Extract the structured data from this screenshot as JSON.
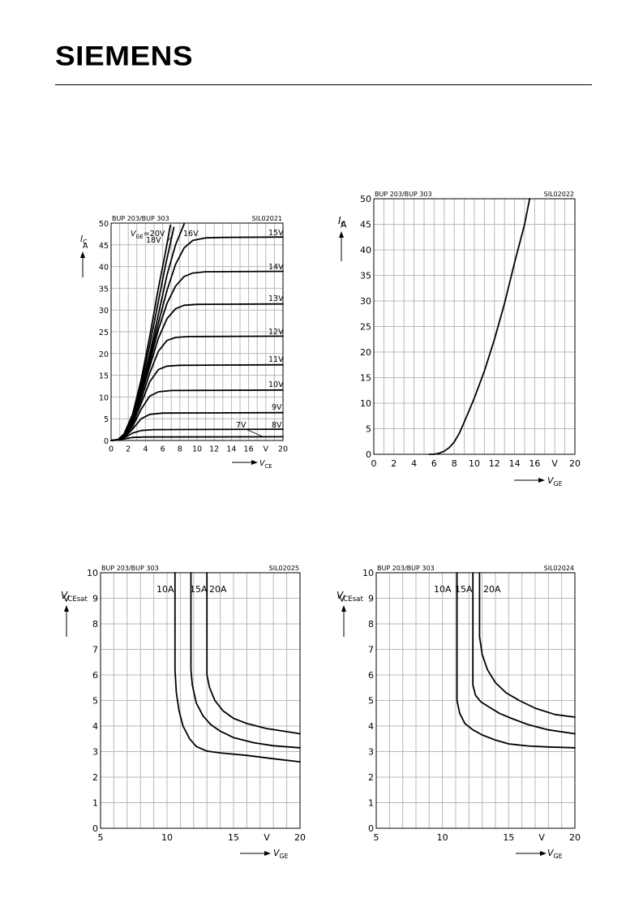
{
  "header": {
    "logo_text": "SIEMENS"
  },
  "chart_data": [
    {
      "type": "line",
      "top_left_label": "BUP 203/BUP 303",
      "code": "SIL02021",
      "xlabel": "V_CE",
      "xunit": "V",
      "ylabel": "I_C",
      "yunit": "A",
      "xlim": [
        0,
        20
      ],
      "ylim": [
        0,
        50
      ],
      "xticks": [
        0,
        2,
        4,
        6,
        8,
        10,
        12,
        14,
        16,
        20
      ],
      "yticks": [
        0,
        5,
        10,
        15,
        20,
        25,
        30,
        35,
        40,
        45,
        50
      ],
      "grid": true,
      "series": [
        {
          "name": "20V",
          "points": [
            [
              0,
              0
            ],
            [
              0.8,
              0.2
            ],
            [
              1.5,
              1.5
            ],
            [
              2.5,
              6
            ],
            [
              3.5,
              14
            ],
            [
              4.5,
              24
            ],
            [
              5.5,
              35
            ],
            [
              6.3,
              43
            ],
            [
              6.9,
              49.5
            ]
          ]
        },
        {
          "name": "18V",
          "points": [
            [
              0,
              0
            ],
            [
              0.8,
              0.2
            ],
            [
              1.5,
              1.3
            ],
            [
              2.5,
              5.5
            ],
            [
              3.5,
              13
            ],
            [
              4.5,
              22
            ],
            [
              5.5,
              32
            ],
            [
              6.3,
              40
            ],
            [
              7.3,
              49
            ]
          ]
        },
        {
          "name": "16V",
          "points": [
            [
              0,
              0
            ],
            [
              0.8,
              0.2
            ],
            [
              1.5,
              1.2
            ],
            [
              2.5,
              5
            ],
            [
              3.5,
              12
            ],
            [
              4.5,
              20
            ],
            [
              5.5,
              29
            ],
            [
              6.5,
              38
            ],
            [
              7.5,
              45
            ],
            [
              8.5,
              49.8
            ]
          ]
        },
        {
          "name": "15V",
          "points": [
            [
              0,
              0
            ],
            [
              0.8,
              0.2
            ],
            [
              1.5,
              1.2
            ],
            [
              2.5,
              5
            ],
            [
              3.5,
              11.5
            ],
            [
              4.5,
              19
            ],
            [
              5.5,
              27
            ],
            [
              6.5,
              34.5
            ],
            [
              7.5,
              40.5
            ],
            [
              8.5,
              44.3
            ],
            [
              9.5,
              46
            ],
            [
              11,
              46.6
            ],
            [
              13,
              46.7
            ],
            [
              20,
              46.8
            ]
          ]
        },
        {
          "name": "14V",
          "points": [
            [
              0,
              0
            ],
            [
              0.8,
              0.2
            ],
            [
              1.5,
              1.1
            ],
            [
              2.5,
              4.8
            ],
            [
              3.5,
              11
            ],
            [
              4.5,
              18
            ],
            [
              5.5,
              25.5
            ],
            [
              6.5,
              31.5
            ],
            [
              7.5,
              35.5
            ],
            [
              8.5,
              37.7
            ],
            [
              9.5,
              38.5
            ],
            [
              11,
              38.8
            ],
            [
              20,
              38.9
            ]
          ]
        },
        {
          "name": "13V",
          "points": [
            [
              0,
              0
            ],
            [
              0.8,
              0.2
            ],
            [
              1.5,
              1.1
            ],
            [
              2.5,
              4.5
            ],
            [
              3.5,
              10.5
            ],
            [
              4.5,
              17
            ],
            [
              5.5,
              23.5
            ],
            [
              6.5,
              28
            ],
            [
              7.5,
              30.3
            ],
            [
              8.5,
              31.1
            ],
            [
              10,
              31.3
            ],
            [
              20,
              31.4
            ]
          ]
        },
        {
          "name": "12V",
          "points": [
            [
              0,
              0
            ],
            [
              0.8,
              0.2
            ],
            [
              1.5,
              1
            ],
            [
              2.5,
              4.2
            ],
            [
              3.5,
              9.5
            ],
            [
              4.5,
              15.5
            ],
            [
              5.5,
              20.5
            ],
            [
              6.5,
              23
            ],
            [
              7.5,
              23.7
            ],
            [
              9,
              23.9
            ],
            [
              20,
              24
            ]
          ]
        },
        {
          "name": "11V",
          "points": [
            [
              0,
              0
            ],
            [
              0.8,
              0.2
            ],
            [
              1.5,
              0.9
            ],
            [
              2.5,
              3.8
            ],
            [
              3.5,
              8.5
            ],
            [
              4.5,
              13.5
            ],
            [
              5.5,
              16.3
            ],
            [
              6.5,
              17.1
            ],
            [
              8,
              17.3
            ],
            [
              20,
              17.4
            ]
          ]
        },
        {
          "name": "10V",
          "points": [
            [
              0,
              0
            ],
            [
              0.8,
              0.2
            ],
            [
              1.5,
              0.8
            ],
            [
              2.5,
              3.2
            ],
            [
              3.5,
              7.2
            ],
            [
              4.5,
              10.2
            ],
            [
              5.5,
              11.2
            ],
            [
              7,
              11.5
            ],
            [
              20,
              11.6
            ]
          ]
        },
        {
          "name": "9V",
          "points": [
            [
              0,
              0
            ],
            [
              0.8,
              0.15
            ],
            [
              1.5,
              0.7
            ],
            [
              2.5,
              2.6
            ],
            [
              3.5,
              5
            ],
            [
              4.5,
              6
            ],
            [
              6,
              6.3
            ],
            [
              20,
              6.4
            ]
          ]
        },
        {
          "name": "8V",
          "points": [
            [
              0,
              0
            ],
            [
              0.8,
              0.12
            ],
            [
              1.5,
              0.6
            ],
            [
              2.5,
              1.7
            ],
            [
              3.5,
              2.3
            ],
            [
              5,
              2.5
            ],
            [
              20,
              2.6
            ]
          ]
        },
        {
          "name": "7V",
          "points": [
            [
              0,
              0
            ],
            [
              0.8,
              0.1
            ],
            [
              1.5,
              0.35
            ],
            [
              2.5,
              0.7
            ],
            [
              4,
              0.8
            ],
            [
              20,
              0.85
            ]
          ]
        }
      ],
      "annotations": [
        {
          "text": "V_GE=20V"
        },
        {
          "text": "18V"
        },
        {
          "text": "16V"
        }
      ]
    },
    {
      "type": "line",
      "top_left_label": "BUP 203/BUP 303",
      "code": "SIL02022",
      "xlabel": "V_GE",
      "xunit": "V",
      "ylabel": "I_C",
      "yunit": "A",
      "xlim": [
        0,
        20
      ],
      "ylim": [
        0,
        50
      ],
      "xticks": [
        0,
        2,
        4,
        6,
        8,
        10,
        12,
        14,
        16,
        20
      ],
      "yticks": [
        0,
        5,
        10,
        15,
        20,
        25,
        30,
        35,
        40,
        45,
        50
      ],
      "grid": true,
      "series": [
        {
          "name": "",
          "points": [
            [
              5.5,
              0
            ],
            [
              6,
              0
            ],
            [
              6.5,
              0.2
            ],
            [
              7,
              0.6
            ],
            [
              7.5,
              1.3
            ],
            [
              8,
              2.4
            ],
            [
              8.5,
              4.1
            ],
            [
              9,
              6.3
            ],
            [
              10,
              11
            ],
            [
              11,
              16.3
            ],
            [
              12,
              22.5
            ],
            [
              13,
              29.5
            ],
            [
              14,
              37.5
            ],
            [
              15,
              45
            ],
            [
              15.5,
              50
            ]
          ]
        }
      ]
    },
    {
      "type": "line",
      "top_left_label": "BUP 203/BUP 303",
      "code": "SIL02025",
      "xlabel": "V_GE",
      "xunit": "V",
      "ylabel": "V_CEsat",
      "yunit": "V",
      "xlim": [
        5,
        20
      ],
      "ylim": [
        0,
        10
      ],
      "xticks": [
        5,
        10,
        15,
        20
      ],
      "yticks": [
        0,
        1,
        2,
        3,
        4,
        5,
        6,
        7,
        8,
        9,
        10
      ],
      "grid": true,
      "series": [
        {
          "name": "10A",
          "points": [
            [
              10.6,
              10
            ],
            [
              10.6,
              6.2
            ],
            [
              10.7,
              5.3
            ],
            [
              10.9,
              4.6
            ],
            [
              11.2,
              4
            ],
            [
              11.7,
              3.5
            ],
            [
              12.2,
              3.2
            ],
            [
              13,
              3.02
            ],
            [
              14,
              2.95
            ],
            [
              16,
              2.85
            ],
            [
              18,
              2.72
            ],
            [
              20,
              2.6
            ]
          ]
        },
        {
          "name": "15A",
          "points": [
            [
              11.8,
              10
            ],
            [
              11.8,
              6.2
            ],
            [
              11.9,
              5.6
            ],
            [
              12.2,
              4.9
            ],
            [
              12.7,
              4.4
            ],
            [
              13.3,
              4.05
            ],
            [
              14,
              3.8
            ],
            [
              15,
              3.55
            ],
            [
              16.5,
              3.35
            ],
            [
              18,
              3.23
            ],
            [
              20,
              3.15
            ]
          ]
        },
        {
          "name": "20A",
          "points": [
            [
              13,
              10
            ],
            [
              13,
              6
            ],
            [
              13.2,
              5.5
            ],
            [
              13.6,
              5
            ],
            [
              14.2,
              4.6
            ],
            [
              15,
              4.3
            ],
            [
              16,
              4.1
            ],
            [
              17.5,
              3.9
            ],
            [
              19,
              3.78
            ],
            [
              20,
              3.7
            ]
          ]
        }
      ]
    },
    {
      "type": "line",
      "top_left_label": "BUP 203/BUP 303",
      "code": "SIL02024",
      "xlabel": "V_GE",
      "xunit": "V",
      "ylabel": "V_CEsat",
      "yunit": "V",
      "xlim": [
        5,
        20
      ],
      "ylim": [
        0,
        10
      ],
      "xticks": [
        5,
        10,
        15,
        20
      ],
      "yticks": [
        0,
        1,
        2,
        3,
        4,
        5,
        6,
        7,
        8,
        9,
        10
      ],
      "grid": true,
      "series": [
        {
          "name": "10A",
          "points": [
            [
              11.1,
              10
            ],
            [
              11.1,
              5
            ],
            [
              11.3,
              4.5
            ],
            [
              11.7,
              4.1
            ],
            [
              12.3,
              3.85
            ],
            [
              13,
              3.65
            ],
            [
              14,
              3.45
            ],
            [
              15,
              3.3
            ],
            [
              16.5,
              3.22
            ],
            [
              18,
              3.18
            ],
            [
              20,
              3.15
            ]
          ]
        },
        {
          "name": "15A",
          "points": [
            [
              12.3,
              10
            ],
            [
              12.3,
              5.6
            ],
            [
              12.5,
              5.2
            ],
            [
              12.9,
              4.95
            ],
            [
              13.5,
              4.75
            ],
            [
              14.3,
              4.5
            ],
            [
              15.2,
              4.3
            ],
            [
              16.5,
              4.05
            ],
            [
              18,
              3.85
            ],
            [
              20,
              3.7
            ]
          ]
        },
        {
          "name": "20A",
          "points": [
            [
              12.8,
              10
            ],
            [
              12.8,
              7.5
            ],
            [
              13,
              6.8
            ],
            [
              13.4,
              6.2
            ],
            [
              14,
              5.7
            ],
            [
              14.8,
              5.3
            ],
            [
              15.8,
              5
            ],
            [
              17,
              4.7
            ],
            [
              18.5,
              4.45
            ],
            [
              20,
              4.35
            ]
          ]
        }
      ],
      "annotations": [
        {
          "text": "10A"
        },
        {
          "text": "15A"
        },
        {
          "text": "20A"
        }
      ]
    }
  ]
}
